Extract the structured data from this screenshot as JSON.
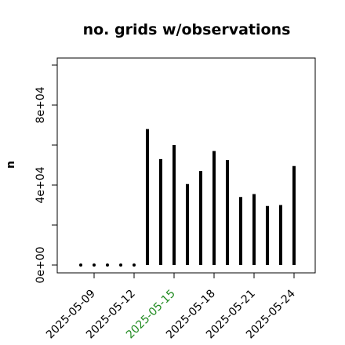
{
  "chart_data": {
    "type": "bar",
    "title": "no. grids w/observations",
    "xlabel": "",
    "ylabel": "n",
    "ylim": [
      0,
      100000
    ],
    "y_ticks": [
      {
        "value": 0,
        "label": "0e+00"
      },
      {
        "value": 20000,
        "label": ""
      },
      {
        "value": 40000,
        "label": "4e+04"
      },
      {
        "value": 60000,
        "label": ""
      },
      {
        "value": 80000,
        "label": "8e+04"
      },
      {
        "value": 100000,
        "label": ""
      }
    ],
    "x_ticks": [
      {
        "x": "2025-05-09",
        "label": "2025-05-09",
        "color": "#000000"
      },
      {
        "x": "2025-05-12",
        "label": "2025-05-12",
        "color": "#000000"
      },
      {
        "x": "2025-05-15",
        "label": "2025-05-15",
        "color": "#228B22"
      },
      {
        "x": "2025-05-18",
        "label": "2025-05-18",
        "color": "#000000"
      },
      {
        "x": "2025-05-21",
        "label": "2025-05-21",
        "color": "#000000"
      },
      {
        "x": "2025-05-24",
        "label": "2025-05-24",
        "color": "#000000"
      }
    ],
    "grid": false,
    "bar_color": "#000000",
    "x": [
      "2025-05-08",
      "2025-05-09",
      "2025-05-10",
      "2025-05-11",
      "2025-05-12",
      "2025-05-13",
      "2025-05-14",
      "2025-05-15",
      "2025-05-16",
      "2025-05-17",
      "2025-05-18",
      "2025-05-19",
      "2025-05-20",
      "2025-05-21",
      "2025-05-22",
      "2025-05-23",
      "2025-05-24"
    ],
    "values": [
      0,
      0,
      0,
      0,
      0,
      68000,
      53000,
      60000,
      40500,
      47000,
      57000,
      52500,
      34000,
      35500,
      29500,
      30000,
      49500
    ]
  }
}
